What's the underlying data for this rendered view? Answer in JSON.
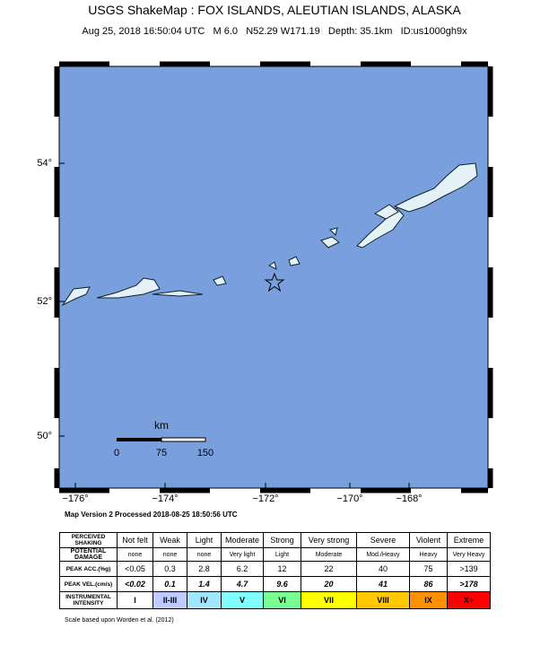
{
  "header": {
    "title": "USGS ShakeMap : FOX ISLANDS, ALEUTIAN ISLANDS, ALASKA",
    "subtitle": "Aug 25, 2018 16:50:04 UTC   M 6.0   N52.29 W171.19   Depth: 35.1km   ID:us1000gh9x"
  },
  "map": {
    "lat_labels": [
      "54°",
      "52°",
      "50°"
    ],
    "lon_labels": [
      "−176°",
      "−174°",
      "−172°",
      "−170°",
      "−168°"
    ],
    "scale": {
      "unit": "km",
      "labels": [
        "0",
        "75",
        "150"
      ]
    },
    "processed": "Map Version 2 Processed 2018-08-25 18:50:56 UTC"
  },
  "table": {
    "rows": [
      {
        "label": "PERCEIVED SHAKING",
        "cells": [
          "Not felt",
          "Weak",
          "Light",
          "Moderate",
          "Strong",
          "Very strong",
          "Severe",
          "Violent",
          "Extreme"
        ]
      },
      {
        "label": "POTENTIAL DAMAGE",
        "cells": [
          "none",
          "none",
          "none",
          "Very light",
          "Light",
          "Moderate",
          "Mod./Heavy",
          "Heavy",
          "Very Heavy"
        ]
      },
      {
        "label": "PEAK ACC.(%g)",
        "cells": [
          "<0.05",
          "0.3",
          "2.8",
          "6.2",
          "12",
          "22",
          "40",
          "75",
          ">139"
        ]
      },
      {
        "label": "PEAK VEL.(cm/s)",
        "cells": [
          "<0.02",
          "0.1",
          "1.4",
          "4.7",
          "9.6",
          "20",
          "41",
          "86",
          ">178"
        ]
      },
      {
        "label": "INSTRUMENTAL INTENSITY",
        "cells": [
          "I",
          "II-III",
          "IV",
          "V",
          "VI",
          "VII",
          "VIII",
          "IX",
          "X+"
        ]
      }
    ],
    "colors": [
      "#ffffff",
      "#bfccff",
      "#a0e6ff",
      "#80ffff",
      "#7aff93",
      "#ffff00",
      "#ffc800",
      "#ff9100",
      "#ff0000"
    ]
  },
  "footnote": "Scale based upon Worden et al. (2012)"
}
